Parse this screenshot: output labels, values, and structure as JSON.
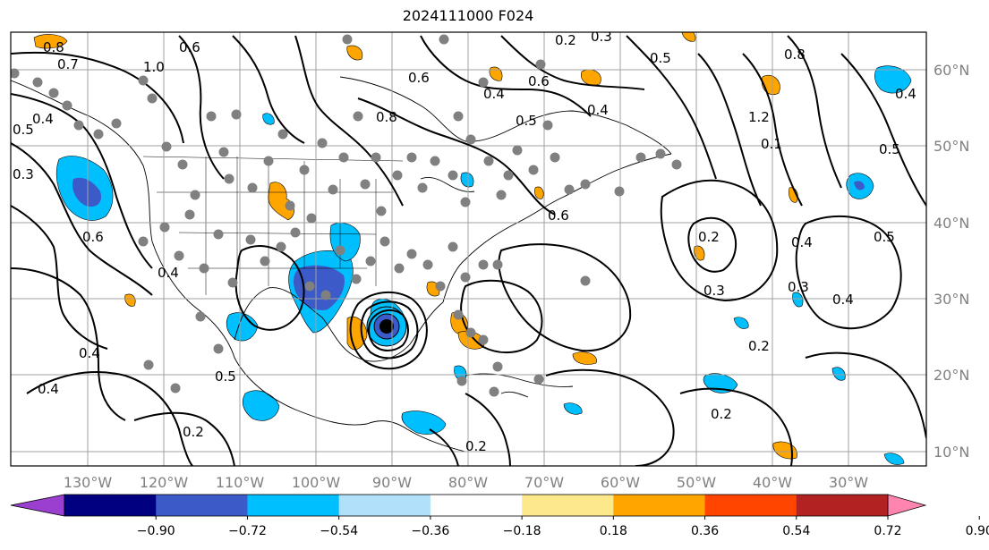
{
  "title": "2024111000 F024",
  "longitude_labels": [
    "130°W",
    "120°W",
    "110°W",
    "100°W",
    "90°W",
    "80°W",
    "70°W",
    "60°W",
    "50°W",
    "40°W",
    "30°W"
  ],
  "latitude_labels": [
    "60°N",
    "50°N",
    "40°N",
    "30°N",
    "20°N",
    "10°N"
  ],
  "colorbar": {
    "ticks": [
      "−0.90",
      "−0.72",
      "−0.54",
      "−0.36",
      "−0.18",
      "0.18",
      "0.36",
      "0.54",
      "0.72",
      "0.90"
    ],
    "colors": [
      "#9a3fd0",
      "#000080",
      "#3c5ac8",
      "#00bfff",
      "#b0e0fa",
      "#ffffff",
      "#fde98c",
      "#ffa500",
      "#ff4500",
      "#b22222",
      "#ff85b0"
    ]
  },
  "contour_labels": [
    "0.8",
    "0.7",
    "0.6",
    "1.0",
    "0.5",
    "0.3",
    "0.4",
    "0.6",
    "0.8",
    "0.5",
    "0.3",
    "0.2",
    "0.4",
    "0.5",
    "0.4",
    "0.6",
    "0.8",
    "1.2",
    "0.1",
    "0.5",
    "0.2",
    "0.3",
    "0.4",
    "0.3",
    "0.4",
    "0.5",
    "0.4",
    "0.2",
    "0.2",
    "0.5",
    "0.4",
    "0.2",
    "0.6",
    "0.4",
    "0.6",
    "0.4",
    "0.2"
  ],
  "colors": {
    "contour": "#000000",
    "grid": "#a0a0a0",
    "station_dot": "#808080",
    "label_gray": "#808080"
  }
}
